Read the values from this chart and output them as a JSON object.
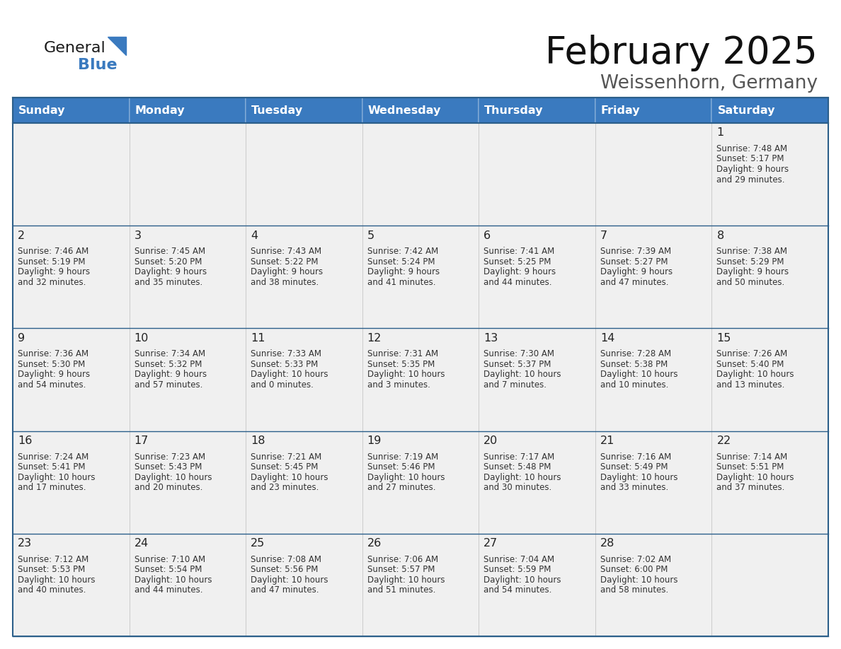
{
  "title": "February 2025",
  "subtitle": "Weissenhorn, Germany",
  "days_of_week": [
    "Sunday",
    "Monday",
    "Tuesday",
    "Wednesday",
    "Thursday",
    "Friday",
    "Saturday"
  ],
  "header_bg": "#3a7abf",
  "header_text": "#ffffff",
  "cell_bg": "#f0f0f0",
  "border_color_dark": "#2c5f8a",
  "border_color_header": "#3a7abf",
  "text_color": "#333333",
  "day_number_color": "#222222",
  "calendar_data": [
    [
      null,
      null,
      null,
      null,
      null,
      null,
      {
        "day": 1,
        "sunrise": "7:48 AM",
        "sunset": "5:17 PM",
        "daylight": "9 hours and 29 minutes."
      }
    ],
    [
      {
        "day": 2,
        "sunrise": "7:46 AM",
        "sunset": "5:19 PM",
        "daylight": "9 hours and 32 minutes."
      },
      {
        "day": 3,
        "sunrise": "7:45 AM",
        "sunset": "5:20 PM",
        "daylight": "9 hours and 35 minutes."
      },
      {
        "day": 4,
        "sunrise": "7:43 AM",
        "sunset": "5:22 PM",
        "daylight": "9 hours and 38 minutes."
      },
      {
        "day": 5,
        "sunrise": "7:42 AM",
        "sunset": "5:24 PM",
        "daylight": "9 hours and 41 minutes."
      },
      {
        "day": 6,
        "sunrise": "7:41 AM",
        "sunset": "5:25 PM",
        "daylight": "9 hours and 44 minutes."
      },
      {
        "day": 7,
        "sunrise": "7:39 AM",
        "sunset": "5:27 PM",
        "daylight": "9 hours and 47 minutes."
      },
      {
        "day": 8,
        "sunrise": "7:38 AM",
        "sunset": "5:29 PM",
        "daylight": "9 hours and 50 minutes."
      }
    ],
    [
      {
        "day": 9,
        "sunrise": "7:36 AM",
        "sunset": "5:30 PM",
        "daylight": "9 hours and 54 minutes."
      },
      {
        "day": 10,
        "sunrise": "7:34 AM",
        "sunset": "5:32 PM",
        "daylight": "9 hours and 57 minutes."
      },
      {
        "day": 11,
        "sunrise": "7:33 AM",
        "sunset": "5:33 PM",
        "daylight": "10 hours and 0 minutes."
      },
      {
        "day": 12,
        "sunrise": "7:31 AM",
        "sunset": "5:35 PM",
        "daylight": "10 hours and 3 minutes."
      },
      {
        "day": 13,
        "sunrise": "7:30 AM",
        "sunset": "5:37 PM",
        "daylight": "10 hours and 7 minutes."
      },
      {
        "day": 14,
        "sunrise": "7:28 AM",
        "sunset": "5:38 PM",
        "daylight": "10 hours and 10 minutes."
      },
      {
        "day": 15,
        "sunrise": "7:26 AM",
        "sunset": "5:40 PM",
        "daylight": "10 hours and 13 minutes."
      }
    ],
    [
      {
        "day": 16,
        "sunrise": "7:24 AM",
        "sunset": "5:41 PM",
        "daylight": "10 hours and 17 minutes."
      },
      {
        "day": 17,
        "sunrise": "7:23 AM",
        "sunset": "5:43 PM",
        "daylight": "10 hours and 20 minutes."
      },
      {
        "day": 18,
        "sunrise": "7:21 AM",
        "sunset": "5:45 PM",
        "daylight": "10 hours and 23 minutes."
      },
      {
        "day": 19,
        "sunrise": "7:19 AM",
        "sunset": "5:46 PM",
        "daylight": "10 hours and 27 minutes."
      },
      {
        "day": 20,
        "sunrise": "7:17 AM",
        "sunset": "5:48 PM",
        "daylight": "10 hours and 30 minutes."
      },
      {
        "day": 21,
        "sunrise": "7:16 AM",
        "sunset": "5:49 PM",
        "daylight": "10 hours and 33 minutes."
      },
      {
        "day": 22,
        "sunrise": "7:14 AM",
        "sunset": "5:51 PM",
        "daylight": "10 hours and 37 minutes."
      }
    ],
    [
      {
        "day": 23,
        "sunrise": "7:12 AM",
        "sunset": "5:53 PM",
        "daylight": "10 hours and 40 minutes."
      },
      {
        "day": 24,
        "sunrise": "7:10 AM",
        "sunset": "5:54 PM",
        "daylight": "10 hours and 44 minutes."
      },
      {
        "day": 25,
        "sunrise": "7:08 AM",
        "sunset": "5:56 PM",
        "daylight": "10 hours and 47 minutes."
      },
      {
        "day": 26,
        "sunrise": "7:06 AM",
        "sunset": "5:57 PM",
        "daylight": "10 hours and 51 minutes."
      },
      {
        "day": 27,
        "sunrise": "7:04 AM",
        "sunset": "5:59 PM",
        "daylight": "10 hours and 54 minutes."
      },
      {
        "day": 28,
        "sunrise": "7:02 AM",
        "sunset": "6:00 PM",
        "daylight": "10 hours and 58 minutes."
      },
      null
    ]
  ],
  "logo_color1": "#1a1a1a",
  "logo_color2": "#3a7abf",
  "logo_triangle_color": "#3a7abf",
  "figsize": [
    11.88,
    9.18
  ],
  "dpi": 100
}
